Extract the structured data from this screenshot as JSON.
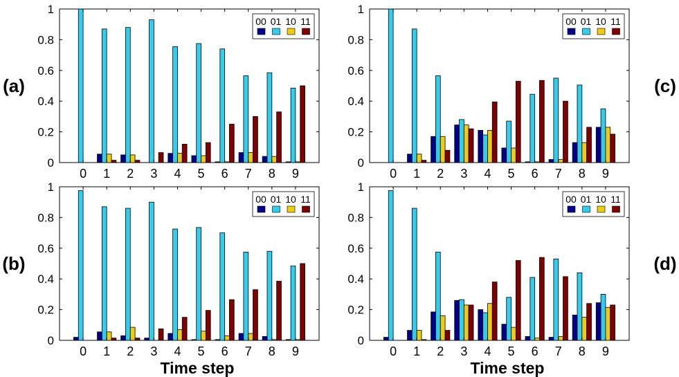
{
  "figure": {
    "xlabel": "Time step",
    "legend_labels": [
      "00",
      "01",
      "10",
      "11"
    ],
    "series_colors": {
      "00": "#00008b",
      "01": "#33ccee",
      "10": "#eecc11",
      "11": "#800000"
    }
  },
  "chart_data": [
    {
      "type": "bar",
      "panel_label": "(a)",
      "categories": [
        "0",
        "1",
        "2",
        "3",
        "4",
        "5",
        "6",
        "7",
        "8",
        "9"
      ],
      "ylim": [
        0,
        1
      ],
      "yticks": [
        "0",
        "0.2",
        "0.4",
        "0.6",
        "0.8",
        "1"
      ],
      "legend": "top-right",
      "series": [
        {
          "name": "00",
          "values": [
            0,
            0.055,
            0.05,
            0,
            0.06,
            0.045,
            0.005,
            0.065,
            0.04,
            0.005
          ]
        },
        {
          "name": "01",
          "values": [
            1.0,
            0.87,
            0.88,
            0.93,
            0.755,
            0.775,
            0.74,
            0.565,
            0.585,
            0.485
          ]
        },
        {
          "name": "10",
          "values": [
            0,
            0.055,
            0.05,
            0,
            0.06,
            0.045,
            0.005,
            0.065,
            0.04,
            0.005
          ]
        },
        {
          "name": "11",
          "values": [
            0,
            0.015,
            0.015,
            0.065,
            0.12,
            0.13,
            0.25,
            0.3,
            0.33,
            0.5
          ]
        }
      ]
    },
    {
      "type": "bar",
      "panel_label": "(b)",
      "categories": [
        "0",
        "1",
        "2",
        "3",
        "4",
        "5",
        "6",
        "7",
        "8",
        "9"
      ],
      "ylim": [
        0,
        1
      ],
      "yticks": [
        "0",
        "0.2",
        "0.4",
        "0.6",
        "0.8",
        "1"
      ],
      "legend": "top-right",
      "series": [
        {
          "name": "00",
          "values": [
            0.02,
            0.055,
            0.03,
            0.015,
            0.045,
            0.005,
            0.005,
            0.045,
            0.025,
            0.005
          ]
        },
        {
          "name": "01",
          "values": [
            0.975,
            0.87,
            0.86,
            0.9,
            0.725,
            0.735,
            0.7,
            0.575,
            0.58,
            0.485
          ]
        },
        {
          "name": "10",
          "values": [
            0,
            0.055,
            0.085,
            0,
            0.07,
            0.06,
            0.03,
            0.045,
            0.005,
            0.005
          ]
        },
        {
          "name": "11",
          "values": [
            0,
            0.015,
            0.015,
            0.075,
            0.15,
            0.195,
            0.265,
            0.33,
            0.385,
            0.5
          ]
        }
      ]
    },
    {
      "type": "bar",
      "panel_label": "(c)",
      "categories": [
        "0",
        "1",
        "2",
        "3",
        "4",
        "5",
        "6",
        "7",
        "8",
        "9"
      ],
      "ylim": [
        0,
        1
      ],
      "yticks": [
        "0",
        "0.2",
        "0.4",
        "0.6",
        "0.8",
        "1"
      ],
      "legend": "top-right",
      "series": [
        {
          "name": "00",
          "values": [
            0,
            0.055,
            0.17,
            0.245,
            0.21,
            0.095,
            0.005,
            0.02,
            0.13,
            0.23
          ]
        },
        {
          "name": "01",
          "values": [
            1.0,
            0.87,
            0.565,
            0.28,
            0.18,
            0.27,
            0.445,
            0.55,
            0.505,
            0.35
          ]
        },
        {
          "name": "10",
          "values": [
            0,
            0.055,
            0.17,
            0.245,
            0.21,
            0.095,
            0.005,
            0.02,
            0.13,
            0.23
          ]
        },
        {
          "name": "11",
          "values": [
            0,
            0.015,
            0.08,
            0.22,
            0.395,
            0.53,
            0.535,
            0.4,
            0.23,
            0.185
          ]
        }
      ]
    },
    {
      "type": "bar",
      "panel_label": "(d)",
      "categories": [
        "0",
        "1",
        "2",
        "3",
        "4",
        "5",
        "6",
        "7",
        "8",
        "9"
      ],
      "ylim": [
        0,
        1
      ],
      "yticks": [
        "0",
        "0.2",
        "0.4",
        "0.6",
        "0.8",
        "1"
      ],
      "legend": "top-right",
      "series": [
        {
          "name": "00",
          "values": [
            0.02,
            0.065,
            0.185,
            0.26,
            0.2,
            0.105,
            0.025,
            0.02,
            0.165,
            0.245
          ]
        },
        {
          "name": "01",
          "values": [
            0.975,
            0.86,
            0.575,
            0.265,
            0.18,
            0.28,
            0.41,
            0.53,
            0.44,
            0.3
          ]
        },
        {
          "name": "10",
          "values": [
            0,
            0.065,
            0.16,
            0.23,
            0.24,
            0.085,
            0.015,
            0.025,
            0.15,
            0.215
          ]
        },
        {
          "name": "11",
          "values": [
            0,
            0.005,
            0.065,
            0.23,
            0.38,
            0.52,
            0.54,
            0.415,
            0.24,
            0.23
          ]
        }
      ]
    }
  ]
}
